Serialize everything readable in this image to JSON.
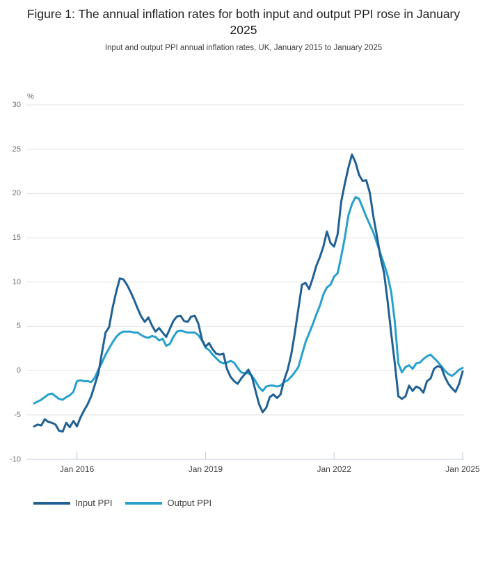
{
  "figure": {
    "title": "Figure 1: The annual inflation rates for both input and output PPI rose in January 2025",
    "subtitle": "Input and output PPI annual inflation rates, UK, January 2015 to January 2025"
  },
  "colors": {
    "grid": "#e2e2e2",
    "axis": "#b9c7d6",
    "title_text": "#222222",
    "subtitle_text": "#414042",
    "tick_text": "#6e6e6e"
  },
  "chart_data": {
    "type": "line",
    "unit_label": "%",
    "x_start": "Jan 2015",
    "x_end": "Jan 2025",
    "x_frequency": "monthly",
    "ylim": [
      -10,
      30
    ],
    "y_ticks": [
      30,
      25,
      20,
      15,
      10,
      5,
      0,
      -5,
      -10
    ],
    "x_ticks": [
      {
        "label": "Jan 2016",
        "month_index": 12
      },
      {
        "label": "Jan 2019",
        "month_index": 48
      },
      {
        "label": "Jan 2022",
        "month_index": 84
      },
      {
        "label": "Jan 2025",
        "month_index": 120
      }
    ],
    "grid": true,
    "legend_position": "bottom-left",
    "series": [
      {
        "name": "Input PPI",
        "color": "#206095",
        "values": [
          -6.3,
          -6.1,
          -6.2,
          -5.5,
          -5.8,
          -5.9,
          -6.1,
          -6.8,
          -6.9,
          -5.9,
          -6.4,
          -5.7,
          -6.3,
          -5.3,
          -4.5,
          -3.8,
          -2.9,
          -1.6,
          -0.3,
          2.0,
          4.3,
          4.9,
          7.1,
          8.9,
          10.4,
          10.3,
          9.7,
          8.9,
          8.0,
          7.0,
          6.1,
          5.5,
          6.0,
          5.1,
          4.4,
          4.8,
          4.3,
          3.8,
          4.7,
          5.6,
          6.1,
          6.2,
          5.6,
          5.5,
          6.1,
          6.2,
          5.3,
          3.5,
          2.7,
          3.1,
          2.4,
          1.9,
          1.8,
          1.9,
          0.2,
          -0.7,
          -1.2,
          -1.5,
          -0.9,
          -0.4,
          0.1,
          -0.7,
          -2.3,
          -3.8,
          -4.7,
          -4.2,
          -3.0,
          -2.7,
          -3.1,
          -2.7,
          -1.1,
          0.1,
          1.8,
          4.2,
          7.0,
          9.7,
          9.9,
          9.2,
          10.4,
          11.8,
          12.8,
          14.0,
          15.7,
          14.4,
          14.0,
          15.4,
          19.1,
          21.1,
          22.9,
          24.4,
          23.5,
          22.1,
          21.4,
          21.5,
          20.1,
          17.4,
          15.2,
          12.8,
          11.0,
          7.8,
          4.2,
          0.8,
          -2.9,
          -3.2,
          -2.9,
          -1.7,
          -2.3,
          -1.8,
          -2.0,
          -2.5,
          -1.2,
          -0.9,
          0.2,
          0.5,
          0.4,
          -0.7,
          -1.5,
          -2.0,
          -2.4,
          -1.5,
          -0.1
        ]
      },
      {
        "name": "Output PPI",
        "color": "#27a0cc",
        "values": [
          -3.7,
          -3.5,
          -3.3,
          -3.0,
          -2.7,
          -2.6,
          -2.9,
          -3.2,
          -3.3,
          -3.0,
          -2.8,
          -2.4,
          -1.2,
          -1.1,
          -1.2,
          -1.2,
          -1.3,
          -0.8,
          0.1,
          0.9,
          1.8,
          2.5,
          3.2,
          3.8,
          4.2,
          4.4,
          4.4,
          4.4,
          4.3,
          4.3,
          4.0,
          3.8,
          3.7,
          3.9,
          3.8,
          3.4,
          3.6,
          2.8,
          3.0,
          3.8,
          4.4,
          4.5,
          4.4,
          4.3,
          4.3,
          4.3,
          4.0,
          3.4,
          2.6,
          2.3,
          1.8,
          1.4,
          1.0,
          0.8,
          0.9,
          1.1,
          0.9,
          0.3,
          -0.2,
          -0.3,
          -0.3,
          -0.6,
          -1.2,
          -1.9,
          -2.3,
          -1.8,
          -1.7,
          -1.7,
          -1.8,
          -1.7,
          -1.3,
          -1.1,
          -0.7,
          -0.2,
          0.4,
          1.8,
          3.2,
          4.2,
          5.2,
          6.3,
          7.3,
          8.6,
          9.4,
          9.7,
          10.6,
          11.0,
          12.9,
          15.0,
          17.5,
          18.8,
          19.6,
          19.4,
          18.4,
          17.4,
          16.5,
          15.6,
          14.4,
          13.2,
          12.0,
          10.7,
          8.9,
          5.5,
          0.8,
          -0.2,
          0.4,
          0.6,
          0.2,
          0.8,
          0.9,
          1.3,
          1.6,
          1.8,
          1.4,
          1.0,
          0.5,
          0.0,
          -0.4,
          -0.6,
          -0.3,
          0.1,
          0.3
        ]
      }
    ]
  }
}
